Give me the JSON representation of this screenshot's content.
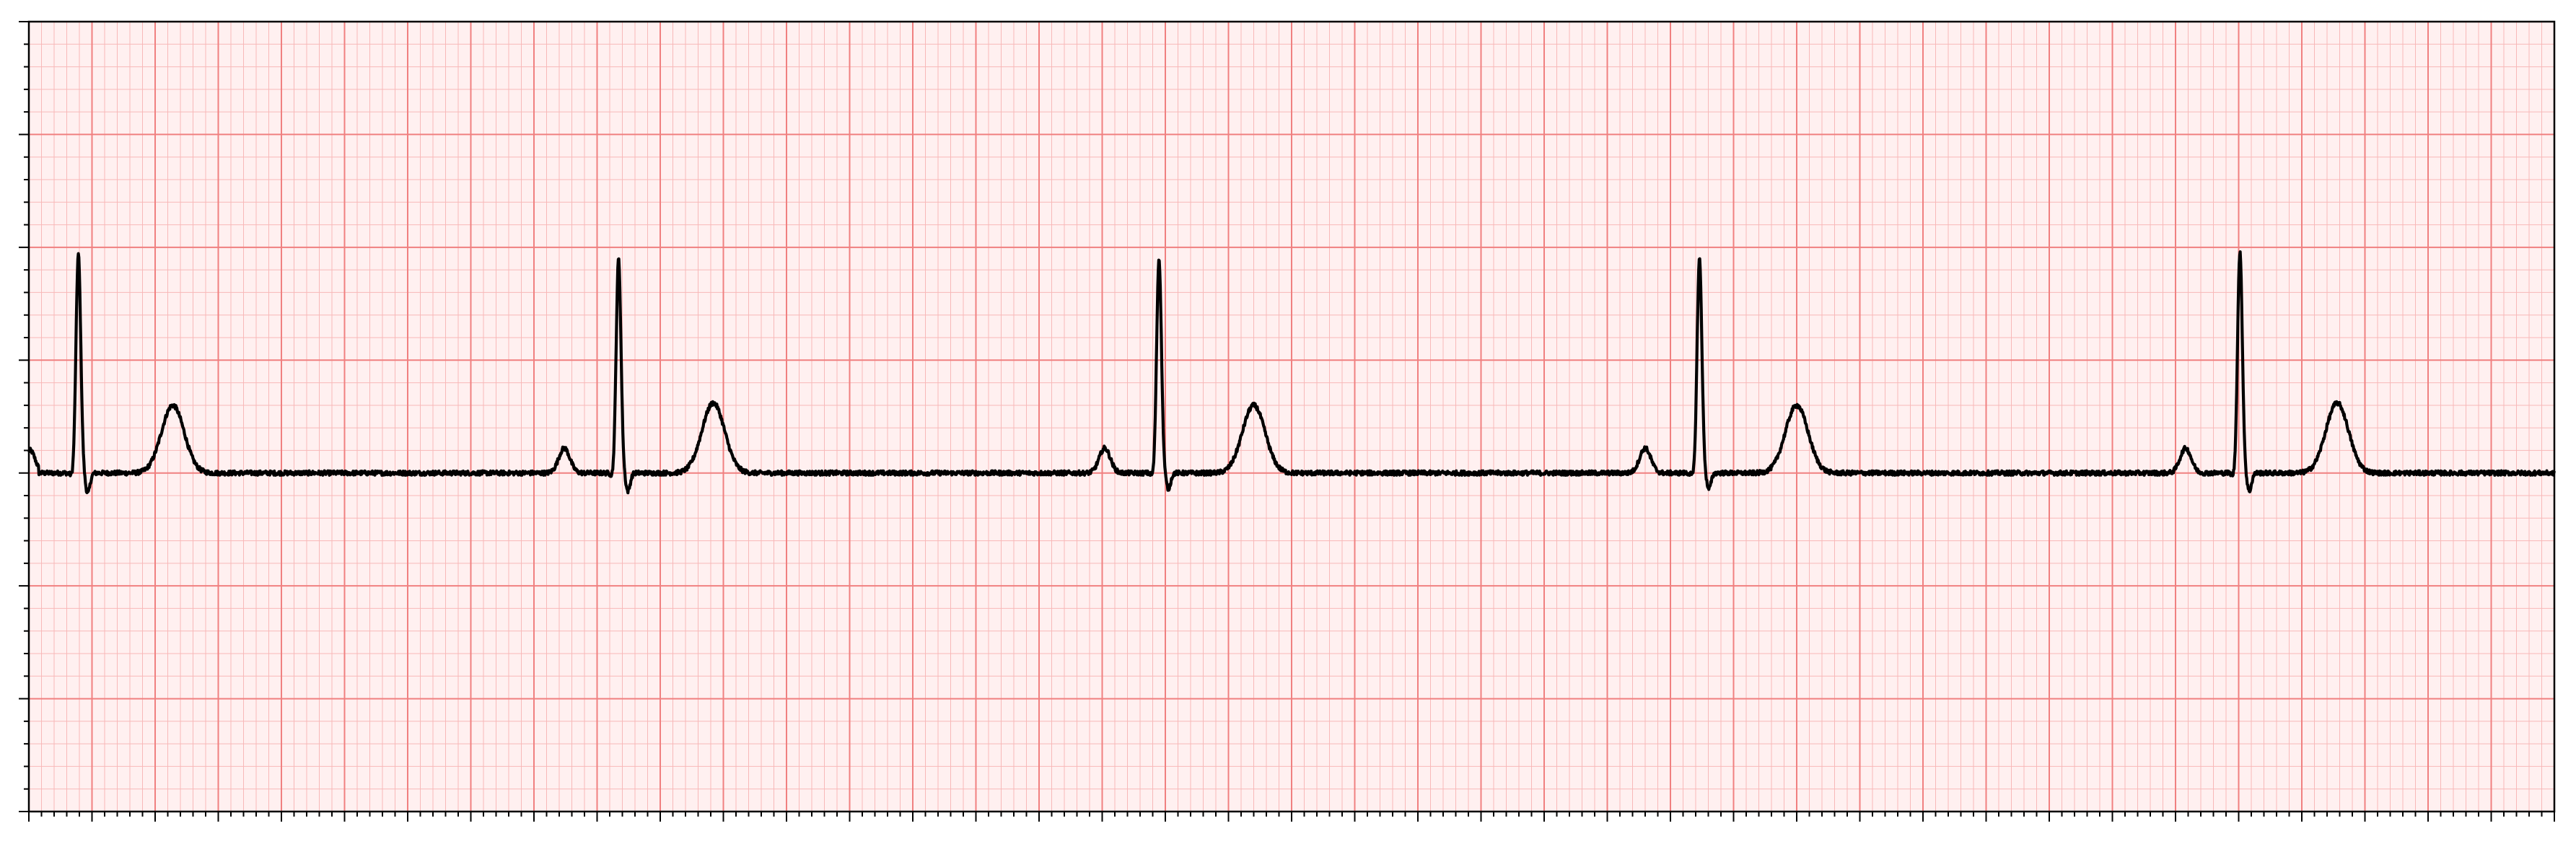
{
  "chart_data": {
    "type": "line",
    "title": "",
    "xlabel": "",
    "ylabel": "",
    "xlim": [
      0,
      10
    ],
    "ylim": [
      -1.5,
      2.0
    ],
    "grid": {
      "major": true,
      "minor": true,
      "major_step_x": 0.25,
      "major_step_y": 0.5,
      "minor_divisions": 5
    },
    "tick_labels_visible": false,
    "colors": {
      "paper": "#fff0f0",
      "major_grid": "#f08080",
      "minor_grid": "#f8b8b8",
      "trace": "#000000",
      "frame": "#000000"
    },
    "beats": [
      {
        "p_time": null,
        "r_time": 0.196,
        "t_time": 0.57,
        "r_peak": 0.97,
        "s_depth": -0.07,
        "t_peak": 0.3,
        "p_peak": null
      },
      {
        "p_time": 2.12,
        "r_time": 2.335,
        "t_time": 2.71,
        "r_peak": 0.95,
        "s_depth": -0.06,
        "t_peak": 0.31,
        "p_peak": 0.11
      },
      {
        "p_time": 4.26,
        "r_time": 4.475,
        "t_time": 4.85,
        "r_peak": 0.95,
        "s_depth": -0.05,
        "t_peak": 0.3,
        "p_peak": 0.11
      },
      {
        "p_time": 6.4,
        "r_time": 6.615,
        "t_time": 7.0,
        "r_peak": 0.95,
        "s_depth": -0.05,
        "t_peak": 0.3,
        "p_peak": 0.11
      },
      {
        "p_time": 8.54,
        "r_time": 8.755,
        "t_time": 9.14,
        "r_peak": 0.98,
        "s_depth": -0.06,
        "t_peak": 0.31,
        "p_peak": 0.11
      }
    ],
    "baseline": 0.0,
    "start_value": 0.1
  }
}
